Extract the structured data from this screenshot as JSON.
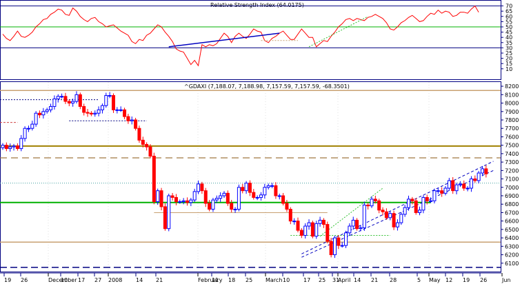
{
  "colors": {
    "up": "#0000ff",
    "down": "#ff0000",
    "rsi": "#ff0000",
    "level_green": "#00b000",
    "level_tan": "#c8a070",
    "level_olive": "#a08000",
    "dash_red": "#d04040",
    "dash_tan": "#a07840",
    "trend_blue": "#0000c0",
    "trend_green": "#30c030",
    "frame": "#000080"
  },
  "chart_data": [
    {
      "type": "line",
      "panel": "rsi",
      "title": "Relative Strength Index (64.0175)",
      "ylim": [
        0,
        75
      ],
      "y_ticks": [
        10,
        15,
        20,
        25,
        30,
        35,
        40,
        45,
        50,
        55,
        60,
        65,
        70
      ],
      "reference_lines": [
        30,
        50,
        70
      ],
      "values": [
        43,
        39,
        37,
        41,
        46,
        41,
        40,
        42,
        45,
        50,
        53,
        57,
        58,
        62,
        64,
        67,
        66,
        62,
        61,
        68,
        65,
        60,
        57,
        55,
        58,
        59,
        55,
        53,
        50,
        51,
        52,
        49,
        46,
        44,
        42,
        36,
        34,
        38,
        37,
        42,
        44,
        48,
        52,
        50,
        45,
        41,
        36,
        29,
        27,
        26,
        20,
        14,
        18,
        13,
        33,
        31,
        33,
        32,
        34,
        39,
        44,
        41,
        35,
        41,
        44,
        41,
        39,
        43,
        48,
        46,
        45,
        37,
        35,
        39,
        41,
        44,
        46,
        42,
        38,
        38,
        43,
        48,
        44,
        40,
        40,
        31,
        34,
        37,
        36,
        41,
        45,
        50,
        53,
        57,
        58,
        56,
        58,
        57,
        56,
        59,
        60,
        62,
        60,
        58,
        54,
        48,
        47,
        50,
        54,
        56,
        59,
        61,
        58,
        55,
        56,
        60,
        63,
        62,
        66,
        63,
        65,
        64,
        60,
        61,
        64,
        64,
        63,
        67,
        70,
        64
      ]
    },
    {
      "type": "candlestick",
      "panel": "price",
      "title": "^GDAXI (7,188.07, 7,188.98, 7,157.59, 7,157.59, -68.3501)",
      "ylim": [
        6000,
        8250
      ],
      "y_ticks": [
        6100,
        6200,
        6300,
        6400,
        6500,
        6600,
        6700,
        6800,
        6900,
        7000,
        7100,
        7200,
        7300,
        7400,
        7500,
        7600,
        7700,
        7800,
        7900,
        8000,
        8100,
        8200
      ],
      "x_ticks": [
        "19",
        "26",
        "December",
        "10",
        "17",
        "27",
        "2008",
        "14",
        "21",
        "February",
        "11",
        "18",
        "25",
        "March",
        "10",
        "17",
        "25",
        "31",
        "April",
        "14",
        "21",
        "28",
        "5",
        "May",
        "12",
        "19",
        "26",
        "Jun"
      ],
      "x_ticks_bold": [
        "December",
        "2008",
        "February",
        "March",
        "April",
        "May",
        "Jun"
      ],
      "horizontal_levels": [
        {
          "price": 8150,
          "style": "tan"
        },
        {
          "price": 7490,
          "style": "olive"
        },
        {
          "price": 7350,
          "style": "tan-dash"
        },
        {
          "price": 7050,
          "style": "teal-dot"
        },
        {
          "price": 6820,
          "style": "green"
        },
        {
          "price": 6350,
          "style": "tan"
        },
        {
          "price": 6050,
          "style": "navy-dash"
        }
      ],
      "resistance_dashes": [
        {
          "price": 8040,
          "style": "navy-dot"
        },
        {
          "price": 7790,
          "style": "navy-dot"
        },
        {
          "price": 7770,
          "style": "red-dash"
        },
        {
          "price": 6430,
          "style": "green-dot"
        }
      ],
      "closes": [
        7500,
        7460,
        7480,
        7490,
        7460,
        7580,
        7700,
        7700,
        7750,
        7880,
        7860,
        7900,
        7920,
        7960,
        8050,
        8080,
        8080,
        8020,
        8000,
        8020,
        8100,
        7960,
        7890,
        7880,
        7870,
        7880,
        7920,
        7970,
        8090,
        8090,
        7920,
        7920,
        7920,
        7840,
        7790,
        7800,
        7700,
        7560,
        7510,
        7480,
        7370,
        6830,
        6960,
        6770,
        6510,
        6900,
        6880,
        6830,
        6830,
        6840,
        6820,
        6850,
        6950,
        7040,
        6960,
        6810,
        6740,
        6850,
        6870,
        6900,
        6930,
        6810,
        6740,
        6740,
        7000,
        6960,
        7050,
        6940,
        6880,
        6880,
        6910,
        7000,
        7020,
        7020,
        6900,
        6900,
        6810,
        6740,
        6600,
        6600,
        6490,
        6430,
        6540,
        6580,
        6420,
        6570,
        6610,
        6560,
        6360,
        6200,
        6400,
        6310,
        6310,
        6460,
        6540,
        6610,
        6510,
        6520,
        6790,
        6780,
        6860,
        6840,
        6730,
        6710,
        6640,
        6690,
        6530,
        6580,
        6680,
        6760,
        6860,
        6840,
        6700,
        6730,
        6880,
        6840,
        6840,
        6960,
        6960,
        6930,
        6990,
        7080,
        6960,
        7030,
        7040,
        6990,
        6990,
        7100,
        7080,
        7170,
        7220,
        7160
      ]
    }
  ]
}
